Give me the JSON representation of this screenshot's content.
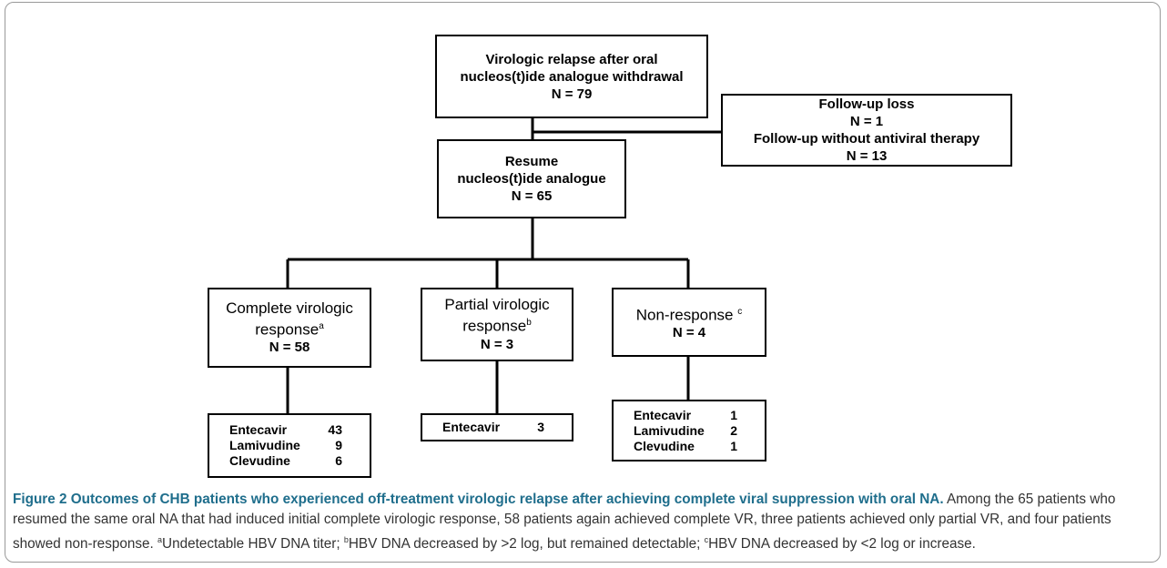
{
  "nodes": [
    {
      "lines": [
        "Virologic relapse after oral",
        "nucleos(t)ide analogue withdrawal",
        "N = 79"
      ]
    },
    {
      "lines": [
        "Follow-up loss",
        "N = 1",
        "Follow-up without antiviral therapy",
        "N = 13"
      ]
    },
    {
      "lines": [
        "Resume",
        "nucleos(t)ide analogue",
        "N = 65"
      ]
    },
    {
      "label": "Complete virologic",
      "label2": "response",
      "sup": "a",
      "n": "N = 58"
    },
    {
      "label": "Partial virologic",
      "label2": "response",
      "sup": "b",
      "n": "N = 3"
    },
    {
      "label": "Non-response",
      "sup": "c",
      "n": "N = 4"
    }
  ],
  "tables": [
    {
      "rows": [
        [
          "Entecavir",
          "43"
        ],
        [
          "Lamivudine",
          "9"
        ],
        [
          "Clevudine",
          "6"
        ]
      ]
    },
    {
      "rows": [
        [
          "Entecavir",
          "3"
        ]
      ]
    },
    {
      "rows": [
        [
          "Entecavir",
          "1"
        ],
        [
          "Lamivudine",
          "2"
        ],
        [
          "Clevudine",
          "1"
        ]
      ]
    }
  ],
  "caption": {
    "title": "Figure 2 Outcomes of CHB patients who experienced off-treatment virologic relapse after achieving complete viral suppression with oral NA.",
    "body": "Among the 65 patients who resumed the same oral NA that had induced initial complete virologic response, 58 patients again achieved complete VR, three patients achieved only partial VR, and four patients showed non-response.",
    "notes": [
      {
        "sup": "a",
        "text": "Undetectable HBV DNA titer;"
      },
      {
        "sup": "b",
        "text": "HBV DNA decreased by >2 log, but remained detectable;"
      },
      {
        "sup": "c",
        "text": "HBV DNA decreased by <2 log or increase."
      }
    ]
  }
}
